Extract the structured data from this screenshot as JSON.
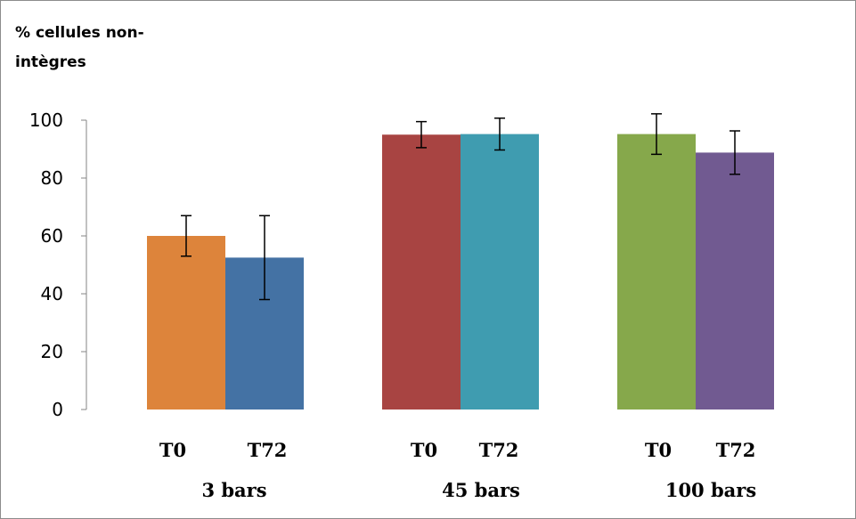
{
  "chart_data": {
    "type": "bar",
    "ylabel_lines": [
      "% cellules non-",
      "intègres"
    ],
    "ylim": [
      0,
      100
    ],
    "yticks": [
      0,
      20,
      40,
      60,
      80,
      100
    ],
    "groups": [
      {
        "name": "3 bars",
        "bars": [
          {
            "label": "T0",
            "value": 60,
            "error": 7,
            "color": "#dd843b"
          },
          {
            "label": "T72",
            "value": 52.5,
            "error": 14.5,
            "color": "#4472a4"
          }
        ]
      },
      {
        "name": "45 bars",
        "bars": [
          {
            "label": "T0",
            "value": 95,
            "error": 4.5,
            "color": "#a84442"
          },
          {
            "label": "T72",
            "value": 95.2,
            "error": 5.5,
            "color": "#3f9cb0"
          }
        ]
      },
      {
        "name": "100 bars",
        "bars": [
          {
            "label": "T0",
            "value": 95.2,
            "error": 7,
            "color": "#86a84b"
          },
          {
            "label": "T72",
            "value": 88.8,
            "error": 7.5,
            "color": "#715a91"
          }
        ]
      }
    ],
    "grid": false,
    "legend": "none"
  }
}
